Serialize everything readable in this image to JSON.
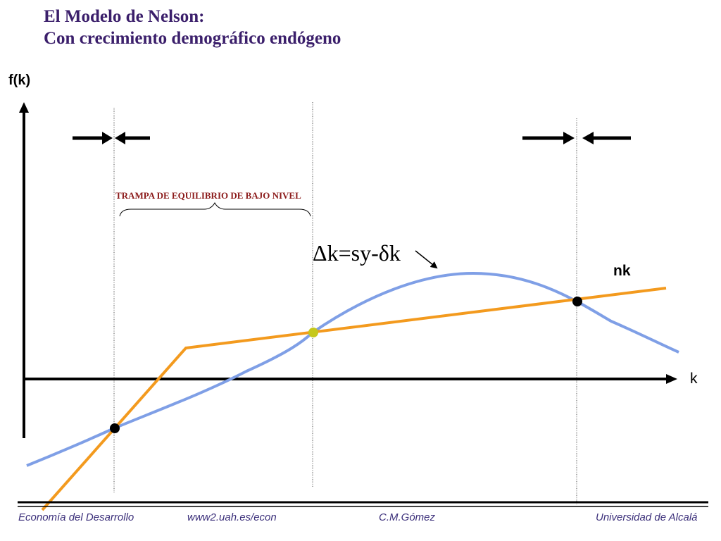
{
  "slide": {
    "title_line1": "El Modelo de Nelson:",
    "title_line2": "Con crecimiento demográfico endógeno"
  },
  "diagram": {
    "y_axis_label": "f(k)",
    "x_axis_label": "k",
    "line_label": "nk",
    "curve_label": "Δk=sy-δk",
    "trap_label": "TRAMPA DE EQUILIBRIO DE BAJO NIVEL",
    "colors": {
      "curve": "#7f9fe6",
      "line": "#f39a1e",
      "unstable_point": "#c6c81b",
      "stable_point": "#000000",
      "title": "#3b1f6b",
      "trap_text": "#8b1a1a",
      "footer": "#3b2f7a"
    }
  },
  "footer": {
    "course": "Economía del Desarrollo",
    "url": "www2.uah.es/econ",
    "author": "C.M.Gómez",
    "university": "Universidad de Alcalá"
  }
}
